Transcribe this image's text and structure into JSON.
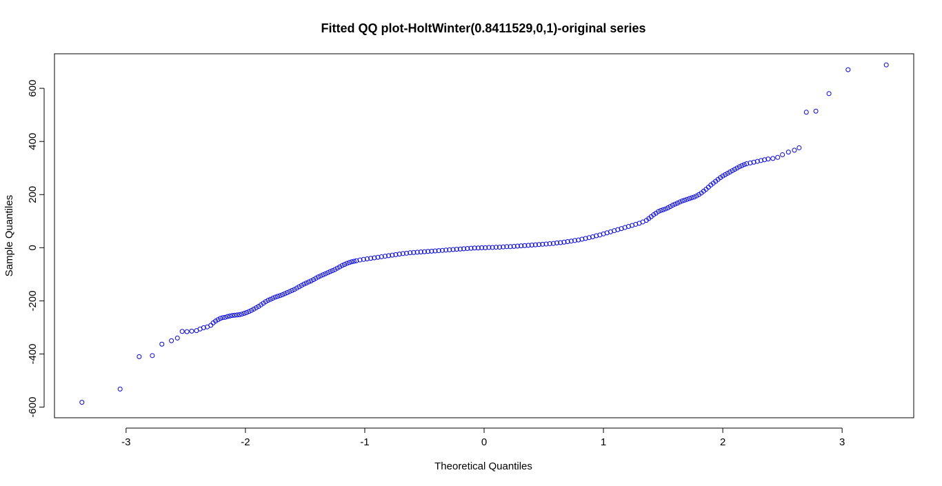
{
  "chart_data": {
    "type": "scatter",
    "title": "Fitted QQ plot-HoltWinter(0.8411529,0,1)-original series",
    "xlabel": "Theoretical Quantiles",
    "ylabel": "Sample Quantiles",
    "xlim": [
      -3.6,
      3.6
    ],
    "ylim": [
      -640,
      730
    ],
    "x_ticks": [
      -3,
      -2,
      -1,
      0,
      1,
      2,
      3
    ],
    "x_tick_labels": [
      "-3",
      "-2",
      "-1",
      "0",
      "1",
      "2",
      "3"
    ],
    "y_ticks": [
      -600,
      -400,
      -200,
      0,
      200,
      400,
      600
    ],
    "y_tick_labels": [
      "-600",
      "-400",
      "-200",
      "0",
      "200",
      "400",
      "600"
    ],
    "grid": false,
    "marker": "open-circle",
    "point_color": "#0000ff",
    "series": [
      {
        "points": [
          [
            -3.37,
            -582
          ],
          [
            -3.05,
            -532
          ],
          [
            -2.89,
            -410
          ],
          [
            -2.78,
            -406
          ],
          [
            -2.7,
            -363
          ],
          [
            -2.62,
            -350
          ],
          [
            -2.57,
            -340
          ],
          [
            -2.53,
            -315
          ],
          [
            -2.49,
            -316
          ],
          [
            -2.45,
            -314
          ],
          [
            -2.41,
            -312
          ],
          [
            -2.38,
            -306
          ],
          [
            -2.35,
            -301
          ],
          [
            -2.32,
            -298
          ],
          [
            -2.29,
            -292
          ],
          [
            -2.27,
            -283
          ],
          [
            -2.25,
            -276
          ],
          [
            -2.23,
            -271
          ],
          [
            -2.21,
            -266
          ],
          [
            -2.19,
            -263
          ],
          [
            -2.17,
            -262
          ],
          [
            -2.15,
            -259
          ],
          [
            -2.13,
            -257
          ],
          [
            -2.11,
            -255
          ],
          [
            -2.09,
            -254
          ],
          [
            -2.07,
            -253
          ],
          [
            -2.05,
            -252
          ],
          [
            -2.03,
            -250
          ],
          [
            -2.01,
            -247
          ],
          [
            -1.99,
            -244
          ],
          [
            -1.97,
            -240
          ],
          [
            -1.95,
            -236
          ],
          [
            -1.93,
            -231
          ],
          [
            -1.91,
            -226
          ],
          [
            -1.89,
            -221
          ],
          [
            -1.87,
            -215
          ],
          [
            -1.85,
            -209
          ],
          [
            -1.83,
            -203
          ],
          [
            -1.81,
            -198
          ],
          [
            -1.79,
            -194
          ],
          [
            -1.77,
            -190
          ],
          [
            -1.75,
            -186
          ],
          [
            -1.73,
            -183
          ],
          [
            -1.71,
            -180
          ],
          [
            -1.69,
            -177
          ],
          [
            -1.67,
            -173
          ],
          [
            -1.65,
            -169
          ],
          [
            -1.63,
            -165
          ],
          [
            -1.61,
            -161
          ],
          [
            -1.59,
            -157
          ],
          [
            -1.57,
            -152
          ],
          [
            -1.55,
            -147
          ],
          [
            -1.53,
            -142
          ],
          [
            -1.51,
            -137
          ],
          [
            -1.49,
            -133
          ],
          [
            -1.47,
            -129
          ],
          [
            -1.45,
            -125
          ],
          [
            -1.43,
            -120
          ],
          [
            -1.41,
            -115
          ],
          [
            -1.39,
            -110
          ],
          [
            -1.37,
            -106
          ],
          [
            -1.35,
            -102
          ],
          [
            -1.33,
            -98
          ],
          [
            -1.31,
            -94
          ],
          [
            -1.29,
            -90
          ],
          [
            -1.27,
            -86
          ],
          [
            -1.25,
            -82
          ],
          [
            -1.23,
            -77
          ],
          [
            -1.21,
            -72
          ],
          [
            -1.19,
            -67
          ],
          [
            -1.17,
            -63
          ],
          [
            -1.15,
            -59
          ],
          [
            -1.13,
            -56
          ],
          [
            -1.11,
            -53
          ],
          [
            -1.09,
            -51
          ],
          [
            -1.07,
            -49
          ],
          [
            -1.04,
            -46
          ],
          [
            -1.01,
            -44
          ],
          [
            -0.98,
            -42
          ],
          [
            -0.95,
            -40
          ],
          [
            -0.92,
            -38
          ],
          [
            -0.89,
            -36
          ],
          [
            -0.86,
            -34
          ],
          [
            -0.83,
            -32
          ],
          [
            -0.8,
            -30
          ],
          [
            -0.77,
            -28
          ],
          [
            -0.74,
            -26
          ],
          [
            -0.71,
            -24
          ],
          [
            -0.68,
            -22
          ],
          [
            -0.65,
            -21
          ],
          [
            -0.62,
            -19
          ],
          [
            -0.59,
            -18
          ],
          [
            -0.56,
            -17
          ],
          [
            -0.53,
            -16
          ],
          [
            -0.5,
            -15
          ],
          [
            -0.47,
            -14
          ],
          [
            -0.44,
            -13
          ],
          [
            -0.41,
            -12
          ],
          [
            -0.38,
            -11
          ],
          [
            -0.35,
            -10
          ],
          [
            -0.32,
            -9
          ],
          [
            -0.29,
            -8
          ],
          [
            -0.26,
            -7
          ],
          [
            -0.23,
            -6
          ],
          [
            -0.2,
            -5
          ],
          [
            -0.17,
            -4
          ],
          [
            -0.14,
            -3
          ],
          [
            -0.11,
            -2
          ],
          [
            -0.08,
            -1
          ],
          [
            -0.05,
            -1
          ],
          [
            -0.02,
            0
          ],
          [
            0.01,
            0
          ],
          [
            0.04,
            1
          ],
          [
            0.07,
            1
          ],
          [
            0.1,
            2
          ],
          [
            0.13,
            2
          ],
          [
            0.16,
            3
          ],
          [
            0.19,
            4
          ],
          [
            0.22,
            4
          ],
          [
            0.25,
            5
          ],
          [
            0.28,
            6
          ],
          [
            0.31,
            7
          ],
          [
            0.34,
            8
          ],
          [
            0.37,
            9
          ],
          [
            0.4,
            10
          ],
          [
            0.43,
            11
          ],
          [
            0.46,
            12
          ],
          [
            0.49,
            13
          ],
          [
            0.52,
            14
          ],
          [
            0.55,
            15
          ],
          [
            0.58,
            16
          ],
          [
            0.61,
            18
          ],
          [
            0.64,
            19
          ],
          [
            0.67,
            21
          ],
          [
            0.7,
            23
          ],
          [
            0.73,
            25
          ],
          [
            0.76,
            27
          ],
          [
            0.79,
            29
          ],
          [
            0.82,
            32
          ],
          [
            0.85,
            35
          ],
          [
            0.88,
            38
          ],
          [
            0.91,
            41
          ],
          [
            0.94,
            45
          ],
          [
            0.97,
            48
          ],
          [
            1.0,
            52
          ],
          [
            1.03,
            56
          ],
          [
            1.06,
            60
          ],
          [
            1.09,
            64
          ],
          [
            1.12,
            68
          ],
          [
            1.15,
            72
          ],
          [
            1.18,
            76
          ],
          [
            1.21,
            80
          ],
          [
            1.24,
            84
          ],
          [
            1.27,
            88
          ],
          [
            1.3,
            92
          ],
          [
            1.33,
            97
          ],
          [
            1.36,
            103
          ],
          [
            1.38,
            110
          ],
          [
            1.4,
            117
          ],
          [
            1.42,
            124
          ],
          [
            1.44,
            130
          ],
          [
            1.46,
            136
          ],
          [
            1.48,
            140
          ],
          [
            1.5,
            143
          ],
          [
            1.52,
            146
          ],
          [
            1.54,
            150
          ],
          [
            1.56,
            155
          ],
          [
            1.58,
            160
          ],
          [
            1.6,
            164
          ],
          [
            1.62,
            168
          ],
          [
            1.64,
            172
          ],
          [
            1.66,
            176
          ],
          [
            1.68,
            179
          ],
          [
            1.7,
            182
          ],
          [
            1.72,
            185
          ],
          [
            1.74,
            188
          ],
          [
            1.76,
            191
          ],
          [
            1.78,
            195
          ],
          [
            1.8,
            200
          ],
          [
            1.82,
            206
          ],
          [
            1.84,
            213
          ],
          [
            1.86,
            220
          ],
          [
            1.88,
            228
          ],
          [
            1.9,
            236
          ],
          [
            1.92,
            243
          ],
          [
            1.94,
            250
          ],
          [
            1.96,
            257
          ],
          [
            1.98,
            264
          ],
          [
            2.0,
            270
          ],
          [
            2.02,
            275
          ],
          [
            2.04,
            280
          ],
          [
            2.06,
            285
          ],
          [
            2.08,
            290
          ],
          [
            2.1,
            295
          ],
          [
            2.12,
            300
          ],
          [
            2.14,
            305
          ],
          [
            2.16,
            309
          ],
          [
            2.18,
            313
          ],
          [
            2.2,
            316
          ],
          [
            2.23,
            319
          ],
          [
            2.26,
            322
          ],
          [
            2.29,
            325
          ],
          [
            2.32,
            328
          ],
          [
            2.35,
            331
          ],
          [
            2.38,
            334
          ],
          [
            2.42,
            336
          ],
          [
            2.46,
            340
          ],
          [
            2.5,
            350
          ],
          [
            2.55,
            360
          ],
          [
            2.6,
            367
          ],
          [
            2.64,
            376
          ],
          [
            2.7,
            510
          ],
          [
            2.78,
            514
          ],
          [
            2.89,
            580
          ],
          [
            3.05,
            670
          ],
          [
            3.37,
            688
          ]
        ]
      }
    ]
  }
}
